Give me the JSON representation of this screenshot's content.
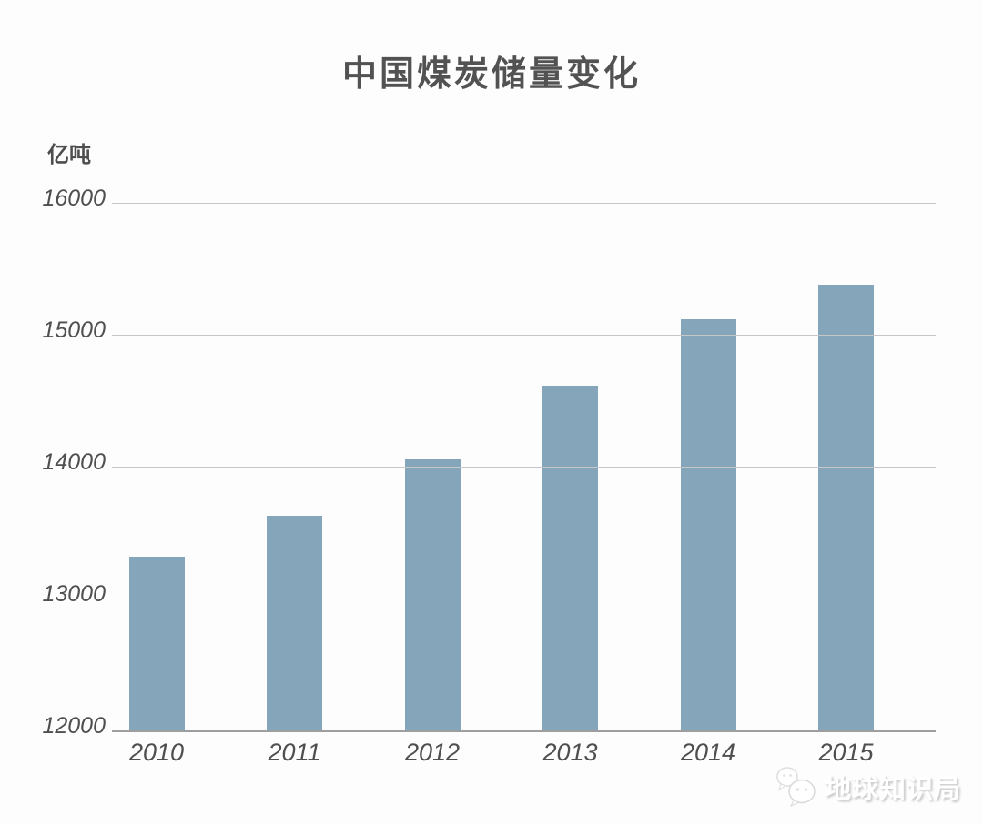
{
  "chart_data": {
    "type": "bar",
    "title": "中国煤炭储量变化",
    "unit_label": "亿吨",
    "xlabel": "",
    "ylabel": "亿吨",
    "categories": [
      "2010",
      "2011",
      "2012",
      "2013",
      "2014",
      "2015"
    ],
    "values": [
      13320,
      13630,
      14060,
      14620,
      15120,
      15380
    ],
    "ylim": [
      12000,
      16000
    ],
    "yticks": [
      12000,
      13000,
      14000,
      15000,
      16000
    ],
    "bar_color": "#85a6ba",
    "gridline_color": "#c7c7c7",
    "baseline_color": "#9e9e9e",
    "grid": true,
    "legend_position": "none"
  },
  "watermark": {
    "text": "地球知识局"
  }
}
